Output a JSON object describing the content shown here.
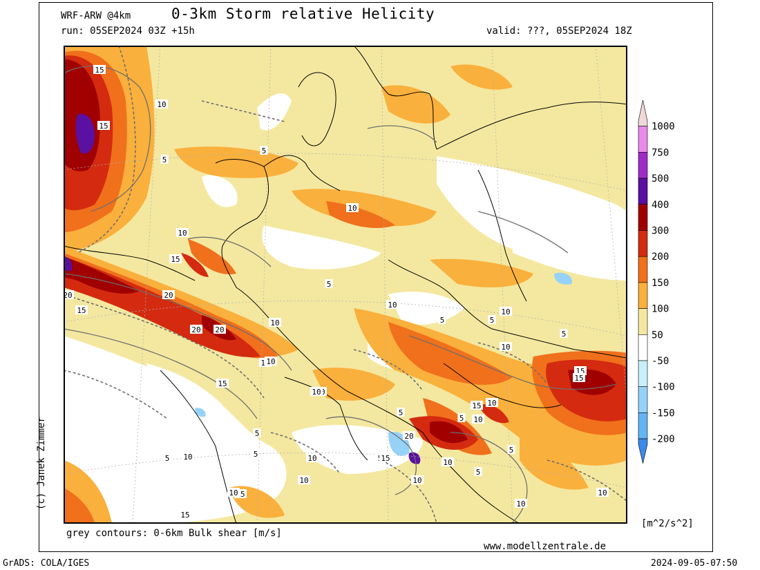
{
  "header": {
    "model": "WRF-ARW @4km",
    "title": "0-3km Storm relative Helicity",
    "run": "run: 05SEP2024 03Z +15h",
    "valid": "valid: ???, 05SEP2024 18Z"
  },
  "footer": {
    "contour_note": "grey contours: 0-6km Bulk shear [m/s]",
    "website": "www.modellzentrale.de",
    "software": "GrADS: COLA/IGES",
    "timestamp": "2024-09-05-07:50"
  },
  "copyright": "(c) Janek Zimmer",
  "legend": {
    "unit": "[m^2/s^2]",
    "bins": [
      {
        "label": "1000",
        "color": "#f0d8d8"
      },
      {
        "label": "750",
        "color": "#e88ae8"
      },
      {
        "label": "500",
        "color": "#a02cc8"
      },
      {
        "label": "400",
        "color": "#5a10a0"
      },
      {
        "label": "300",
        "color": "#a00000"
      },
      {
        "label": "200",
        "color": "#d42a10"
      },
      {
        "label": "150",
        "color": "#f0701c"
      },
      {
        "label": "100",
        "color": "#fab03c"
      },
      {
        "label": "50",
        "color": "#f4e8a0"
      },
      {
        "label": "-50",
        "color": "#ffffff"
      },
      {
        "label": "-100",
        "color": "#c8f0f8"
      },
      {
        "label": "-150",
        "color": "#96d2f8"
      },
      {
        "label": "-200",
        "color": "#64b4f4"
      },
      {
        "label": "",
        "color": "#3c8ae6"
      }
    ]
  },
  "map": {
    "contour_labels": [
      "15",
      "15",
      "10",
      "5",
      "5",
      "10",
      "15",
      "20",
      "20",
      "20",
      "15",
      "20",
      "10",
      "10",
      "15",
      "5",
      "10",
      "15",
      "5",
      "10",
      "5",
      "10",
      "10",
      "10",
      "5",
      "5",
      "5",
      "5",
      "10",
      "15",
      "20",
      "5",
      "5",
      "10",
      "15",
      "15",
      "10",
      "5",
      "10",
      "10",
      "5",
      "10",
      "5",
      "15",
      "15",
      "10",
      "10",
      "10",
      "10",
      "15",
      "10"
    ]
  }
}
